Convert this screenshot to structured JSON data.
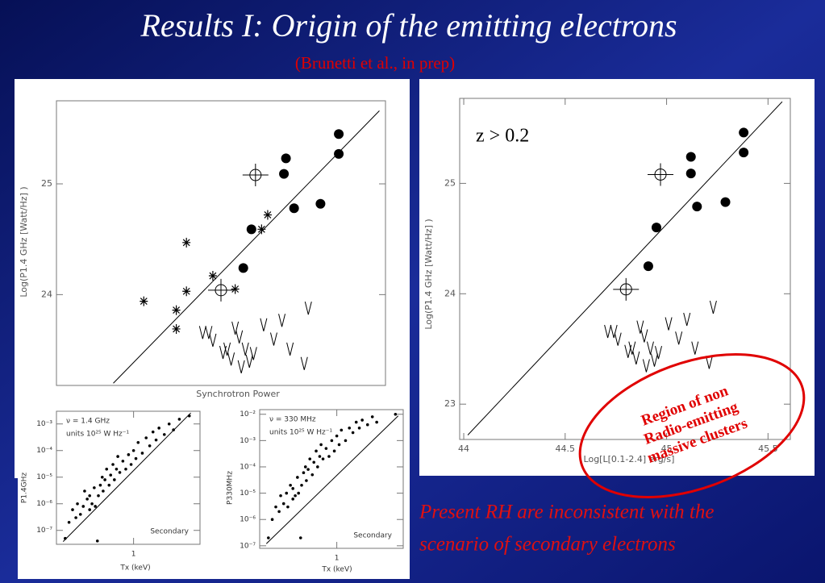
{
  "slide": {
    "title": "Results I: Origin of the emitting electrons",
    "subtitle": "(Brunetti et al., in prep)",
    "caption": [
      "Present RH are inconsistent with the",
      "scenario of secondary electrons"
    ],
    "region_label": [
      "Region of non",
      "Radio-emitting",
      "massive clusters"
    ]
  },
  "chart_data": [
    {
      "type": "scatter",
      "y_label": "Log(P1.4 GHz [Watt/Hz] )",
      "x_label": "Synchrotron Power",
      "xlim": [
        43.99,
        45.61
      ],
      "ylim": [
        23.18,
        25.75
      ],
      "yticks": [
        24,
        25
      ],
      "series": [
        {
          "marker": "filled",
          "color": "#000000",
          "x": [
            45.38,
            45.38,
            45.12,
            45.11,
            45.16,
            45.29,
            44.95,
            44.91
          ],
          "values": [
            25.45,
            25.27,
            25.23,
            25.09,
            24.78,
            24.82,
            24.59,
            24.24
          ]
        },
        {
          "marker": "open",
          "color": "#000000",
          "x": [
            44.97,
            44.8
          ],
          "values": [
            25.08,
            24.04
          ]
        },
        {
          "marker": "asterisk",
          "color": "#000000",
          "x": [
            44.42,
            44.58,
            44.58,
            44.63,
            44.63,
            44.76,
            44.87,
            45.0,
            45.03
          ],
          "values": [
            23.94,
            23.86,
            23.69,
            24.47,
            24.03,
            24.17,
            24.05,
            24.59,
            24.72
          ]
        },
        {
          "marker": "upper",
          "color": "#000000",
          "x": [
            44.71,
            44.74,
            44.76,
            44.81,
            44.83,
            44.85,
            44.87,
            44.89,
            44.9,
            44.92,
            44.94,
            44.96,
            45.01,
            45.06,
            45.1,
            45.14,
            45.21,
            45.23
          ],
          "values": [
            23.6,
            23.6,
            23.53,
            23.42,
            23.45,
            23.36,
            23.64,
            23.56,
            23.29,
            23.45,
            23.34,
            23.41,
            23.67,
            23.54,
            23.71,
            23.45,
            23.32,
            23.82
          ]
        },
        {
          "marker": "line",
          "color": "#000000",
          "x": [
            44.27,
            45.58
          ],
          "values": [
            23.2,
            25.66
          ]
        }
      ]
    },
    {
      "type": "scatter",
      "y_label": "Log(P1.4 GHz [Watt/Hz] )",
      "x_label": "Log[L[0.1-2.4] erg/s]",
      "annotation": "z > 0.2",
      "xlim": [
        43.98,
        45.61
      ],
      "ylim": [
        22.68,
        25.77
      ],
      "yticks": [
        23,
        24,
        25
      ],
      "xticks": [
        44,
        44.5,
        45,
        45.5
      ],
      "series": [
        {
          "marker": "filled",
          "color": "#000000",
          "x": [
            45.38,
            45.38,
            45.12,
            45.12,
            45.15,
            45.29,
            44.95,
            44.91
          ],
          "values": [
            25.46,
            25.28,
            25.24,
            25.09,
            24.79,
            24.83,
            24.6,
            24.25
          ]
        },
        {
          "marker": "open",
          "color": "#000000",
          "x": [
            44.97,
            44.8
          ],
          "values": [
            25.08,
            24.04
          ]
        },
        {
          "marker": "upper",
          "color": "#000000",
          "x": [
            44.71,
            44.74,
            44.76,
            44.81,
            44.83,
            44.85,
            44.87,
            44.89,
            44.9,
            44.92,
            44.94,
            44.96,
            45.01,
            45.06,
            45.1,
            45.14,
            45.21,
            45.23
          ],
          "values": [
            23.6,
            23.6,
            23.53,
            23.42,
            23.45,
            23.36,
            23.64,
            23.56,
            23.29,
            23.45,
            23.34,
            23.41,
            23.67,
            23.54,
            23.71,
            23.45,
            23.32,
            23.82
          ]
        },
        {
          "marker": "line",
          "color": "#000000",
          "x": [
            44.02,
            45.57
          ],
          "values": [
            22.72,
            25.74
          ]
        }
      ]
    },
    {
      "type": "scatter",
      "x_log": true,
      "y_log": true,
      "y_label": "P1.4GHz",
      "x_label": "Tx (keV)",
      "nu_label": "ν = 1.4 GHz",
      "units_label": "units 10²⁵ W Hz⁻¹",
      "corner_label": "Secondary",
      "xlim": [
        0.2,
        4
      ],
      "ylim": [
        3e-08,
        0.003
      ],
      "xticks": [
        1
      ],
      "yticks": [
        {
          "value": 1e-07,
          "label": "10⁻⁷"
        },
        {
          "value": 1e-06,
          "label": "10⁻⁶"
        },
        {
          "value": 1e-05,
          "label": "10⁻⁵"
        },
        {
          "value": 0.0001,
          "label": "10⁻⁴"
        },
        {
          "value": 0.001,
          "label": "10⁻³"
        }
      ],
      "series": [
        {
          "marker": "dot",
          "color": "#000000",
          "x": [
            0.24,
            0.26,
            0.28,
            0.3,
            0.31,
            0.33,
            0.35,
            0.36,
            0.38,
            0.4,
            0.4,
            0.42,
            0.44,
            0.45,
            0.47,
            0.48,
            0.5,
            0.52,
            0.53,
            0.55,
            0.57,
            0.6,
            0.62,
            0.65,
            0.67,
            0.7,
            0.72,
            0.75,
            0.8,
            0.85,
            0.9,
            0.95,
            1.0,
            1.05,
            1.1,
            1.2,
            1.3,
            1.4,
            1.5,
            1.6,
            1.7,
            1.9,
            2.1,
            2.3,
            2.6,
            3.2
          ],
          "values": [
            5e-08,
            2e-07,
            6e-07,
            3e-07,
            1e-06,
            4e-07,
            8e-07,
            3e-06,
            1.5e-06,
            6e-07,
            2e-06,
            1e-06,
            4e-06,
            8e-07,
            4e-08,
            2e-06,
            5e-06,
            1e-05,
            3e-06,
            8e-06,
            2e-05,
            5e-06,
            1.2e-05,
            3e-05,
            8e-06,
            2e-05,
            6e-05,
            1.5e-05,
            4e-05,
            2e-05,
            7e-05,
            3e-05,
            0.0001,
            5e-05,
            0.0002,
            8e-05,
            0.0003,
            0.00015,
            0.0005,
            0.00025,
            0.0007,
            0.0004,
            0.001,
            0.0006,
            0.0015,
            0.002
          ]
        },
        {
          "marker": "line",
          "color": "#000000",
          "x": [
            0.23,
            3.3
          ],
          "values": [
            3.8e-08,
            0.0026
          ]
        }
      ]
    },
    {
      "type": "scatter",
      "x_log": true,
      "y_log": true,
      "y_label": "P330MHz",
      "x_label": "Tx (keV)",
      "nu_label": "ν = 330 MHz",
      "units_label": "units 10²⁵ W Hz⁻¹",
      "corner_label": "Secondary",
      "xlim": [
        0.2,
        4
      ],
      "ylim": [
        8e-08,
        0.015
      ],
      "xticks": [
        1
      ],
      "yticks": [
        {
          "value": 1e-07,
          "label": "10⁻⁷"
        },
        {
          "value": 1e-06,
          "label": "10⁻⁶"
        },
        {
          "value": 1e-05,
          "label": "10⁻⁵"
        },
        {
          "value": 0.0001,
          "label": "10⁻⁴"
        },
        {
          "value": 0.001,
          "label": "10⁻³"
        },
        {
          "value": 0.01,
          "label": "10⁻²"
        }
      ],
      "series": [
        {
          "marker": "dot",
          "color": "#000000",
          "x": [
            0.24,
            0.26,
            0.28,
            0.3,
            0.31,
            0.33,
            0.35,
            0.36,
            0.38,
            0.4,
            0.4,
            0.42,
            0.44,
            0.45,
            0.47,
            0.48,
            0.5,
            0.52,
            0.53,
            0.55,
            0.57,
            0.6,
            0.62,
            0.65,
            0.67,
            0.7,
            0.72,
            0.75,
            0.8,
            0.85,
            0.9,
            0.95,
            1.0,
            1.05,
            1.1,
            1.2,
            1.3,
            1.4,
            1.5,
            1.6,
            1.7,
            1.9,
            2.1,
            2.3,
            3.4
          ],
          "values": [
            2e-07,
            1e-06,
            3e-06,
            2e-06,
            8e-06,
            4e-06,
            1e-05,
            3e-06,
            2e-05,
            6e-06,
            1.5e-05,
            8e-06,
            4e-05,
            1e-05,
            2e-07,
            2e-05,
            6e-05,
            0.0001,
            3e-05,
            8e-05,
            0.0002,
            5e-05,
            0.00015,
            0.0004,
            0.0001,
            0.00025,
            0.0007,
            0.0002,
            0.0005,
            0.00025,
            0.001,
            0.0004,
            0.0015,
            0.0007,
            0.0025,
            0.001,
            0.003,
            0.002,
            0.005,
            0.003,
            0.006,
            0.004,
            0.008,
            0.005,
            0.01
          ]
        },
        {
          "marker": "line",
          "color": "#000000",
          "x": [
            0.23,
            3.6
          ],
          "values": [
            1.2e-07,
            0.0087
          ]
        }
      ]
    }
  ]
}
